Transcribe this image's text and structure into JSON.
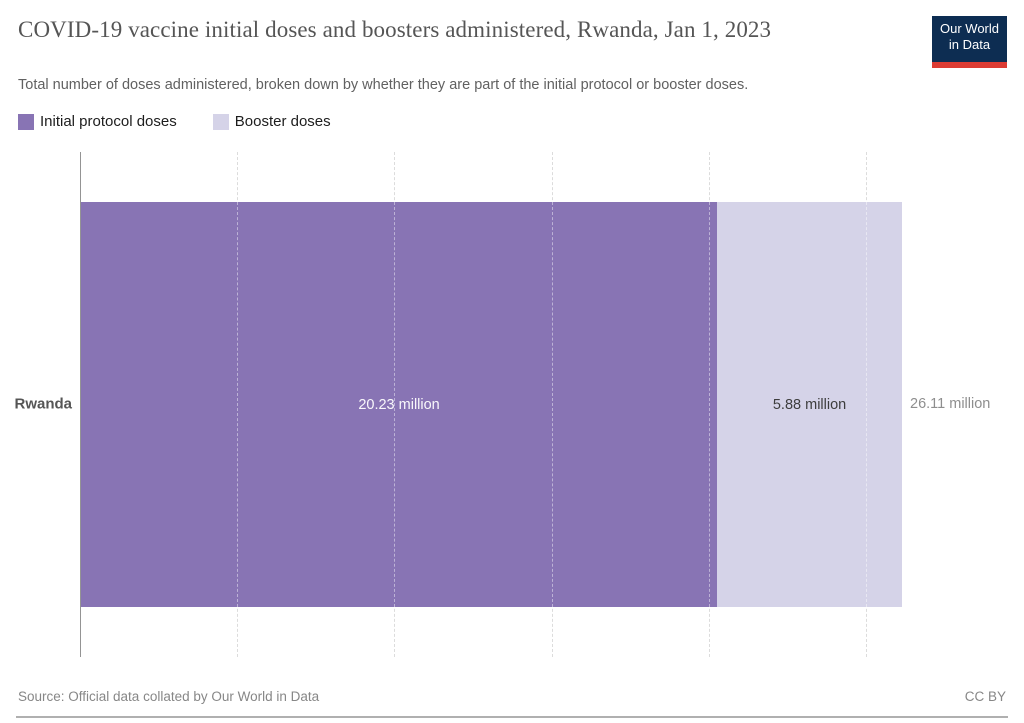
{
  "header": {
    "title": "COVID-19 vaccine initial doses and boosters administered, Rwanda, Jan 1, 2023",
    "subtitle": "Total number of doses administered, broken down by whether they are part of the initial protocol or booster doses."
  },
  "logo": {
    "line1": "Our World",
    "line2": "in Data",
    "navy": "#0d2d52",
    "red": "#dc3b33"
  },
  "legend": {
    "items": [
      {
        "label": "Initial protocol doses",
        "color": "#8874b4"
      },
      {
        "label": "Booster doses",
        "color": "#d5d3e8"
      }
    ]
  },
  "chart_data": {
    "type": "bar",
    "orientation": "horizontal-stacked",
    "title": "COVID-19 vaccine initial doses and boosters administered, Rwanda, Jan 1, 2023",
    "categories": [
      "Rwanda"
    ],
    "series": [
      {
        "name": "Initial protocol doses",
        "values": [
          20.23
        ],
        "label": "20.23 million",
        "color": "#8874b4"
      },
      {
        "name": "Booster doses",
        "values": [
          5.88
        ],
        "label": "5.88 million",
        "color": "#d5d3e8"
      }
    ],
    "total": 26.11,
    "total_label": "26.11 million",
    "unit": "million doses",
    "xlim": [
      0,
      26.11
    ],
    "gridlines_million": [
      5,
      10,
      15,
      20,
      25
    ],
    "grid": "dashed-vertical",
    "legend_position": "top-left"
  },
  "footer": {
    "source": "Source: Official data collated by Our World in Data",
    "license": "CC BY"
  }
}
